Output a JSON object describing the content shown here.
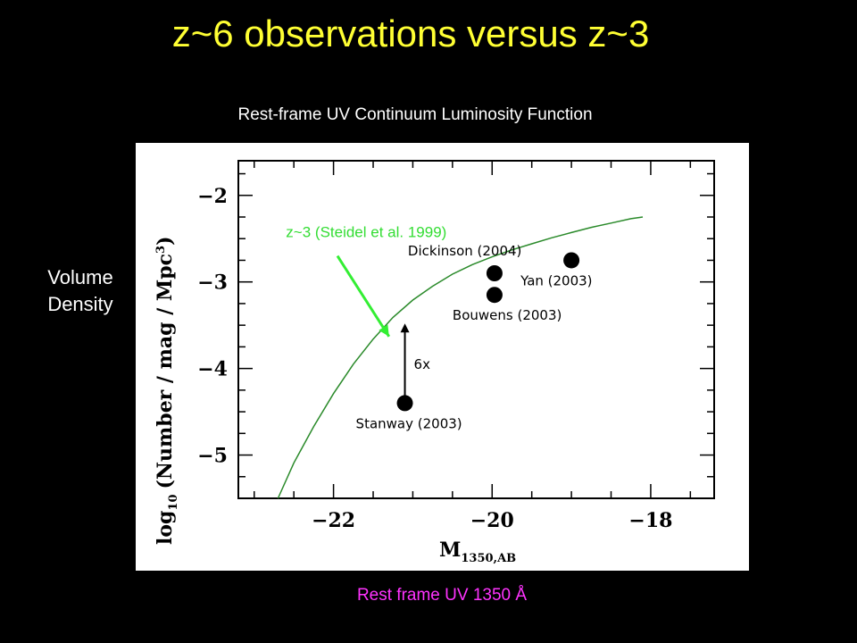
{
  "slide": {
    "title": "z~6 observations versus z~3",
    "subtitle": "Rest-frame UV Continuum Luminosity Function",
    "y_side_label_line1": "Volume",
    "y_side_label_line2": "Density",
    "x_bottom_label": "Rest frame UV 1350 Å"
  },
  "colors": {
    "background": "#000000",
    "title": "#ffff33",
    "x_bottom_label": "#ff33ff",
    "curve": "#2a8a2a",
    "curve_label": "#33dd33",
    "arrow": "#33ee33",
    "points": "#000000"
  },
  "chart_data": {
    "type": "scatter",
    "xlabel": "M",
    "xlabel_sub": "1350,AB",
    "ylabel_main": "log",
    "ylabel_sub": "10",
    "ylabel_rest": "(Number / mag / Mpc",
    "ylabel_sup": "3",
    "ylabel_close": ")",
    "xlim": [
      -23.2,
      -17.2
    ],
    "ylim": [
      -5.5,
      -1.6
    ],
    "xticks": [
      -22,
      -20,
      -18
    ],
    "yticks": [
      -2,
      -3,
      -4,
      -5
    ],
    "curve": {
      "name": "z~3 (Steidel et al. 1999)",
      "x": [
        -22.7,
        -22.5,
        -22.25,
        -22.0,
        -21.75,
        -21.5,
        -21.25,
        -21.0,
        -20.75,
        -20.5,
        -20.25,
        -20.0,
        -19.75,
        -19.5,
        -19.25,
        -19.0,
        -18.75,
        -18.5,
        -18.25,
        -18.1
      ],
      "y": [
        -5.5,
        -5.09,
        -4.67,
        -4.29,
        -3.95,
        -3.66,
        -3.41,
        -3.21,
        -3.05,
        -2.91,
        -2.8,
        -2.71,
        -2.63,
        -2.56,
        -2.49,
        -2.43,
        -2.37,
        -2.32,
        -2.27,
        -2.25
      ]
    },
    "points": [
      {
        "label": "Dickinson (2004)",
        "x": -19.97,
        "y": -2.9
      },
      {
        "label": "Bouwens (2003)",
        "x": -19.97,
        "y": -3.15
      },
      {
        "label": "Yan (2003)",
        "x": -19.0,
        "y": -2.75
      },
      {
        "label": "Stanway (2003)",
        "x": -21.1,
        "y": -4.4
      }
    ],
    "arrow_annotation": {
      "label": "6x",
      "x": -21.1,
      "y_from": -4.4,
      "y_to": -3.48
    }
  }
}
